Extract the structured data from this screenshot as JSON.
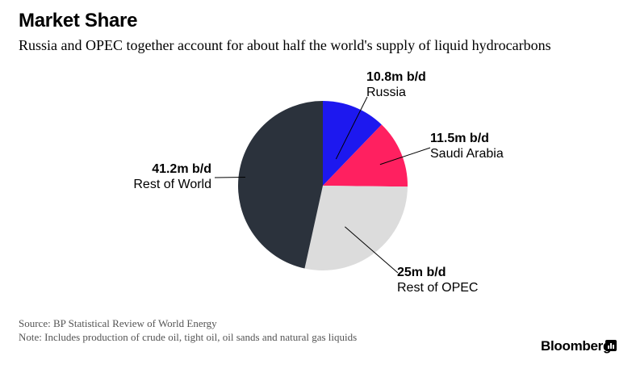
{
  "header": {
    "title": "Market Share",
    "subtitle": "Russia and OPEC together account for about half the world's supply of liquid hydrocarbons"
  },
  "chart_data": {
    "type": "pie",
    "title": "Market Share",
    "subtitle": "Russia and OPEC together account for about half the world's supply of liquid hydrocarbons",
    "unit": "m b/d",
    "slices": [
      {
        "label": "Russia",
        "value": 10.8,
        "value_label": "10.8m b/d",
        "color": "#1d18ef"
      },
      {
        "label": "Saudi Arabia",
        "value": 11.5,
        "value_label": "11.5m b/d",
        "color": "#ff2060"
      },
      {
        "label": "Rest of OPEC",
        "value": 25,
        "value_label": "25m b/d",
        "color": "#dcdcdc"
      },
      {
        "label": "Rest of World",
        "value": 41.2,
        "value_label": "41.2m b/d",
        "color": "#2b323c"
      }
    ]
  },
  "footer": {
    "source": "Source: BP Statistical Review of World Energy",
    "note": "Note: Includes production of crude oil, tight oil, oil sands and natural gas liquids",
    "brand": "Bloomberg"
  }
}
